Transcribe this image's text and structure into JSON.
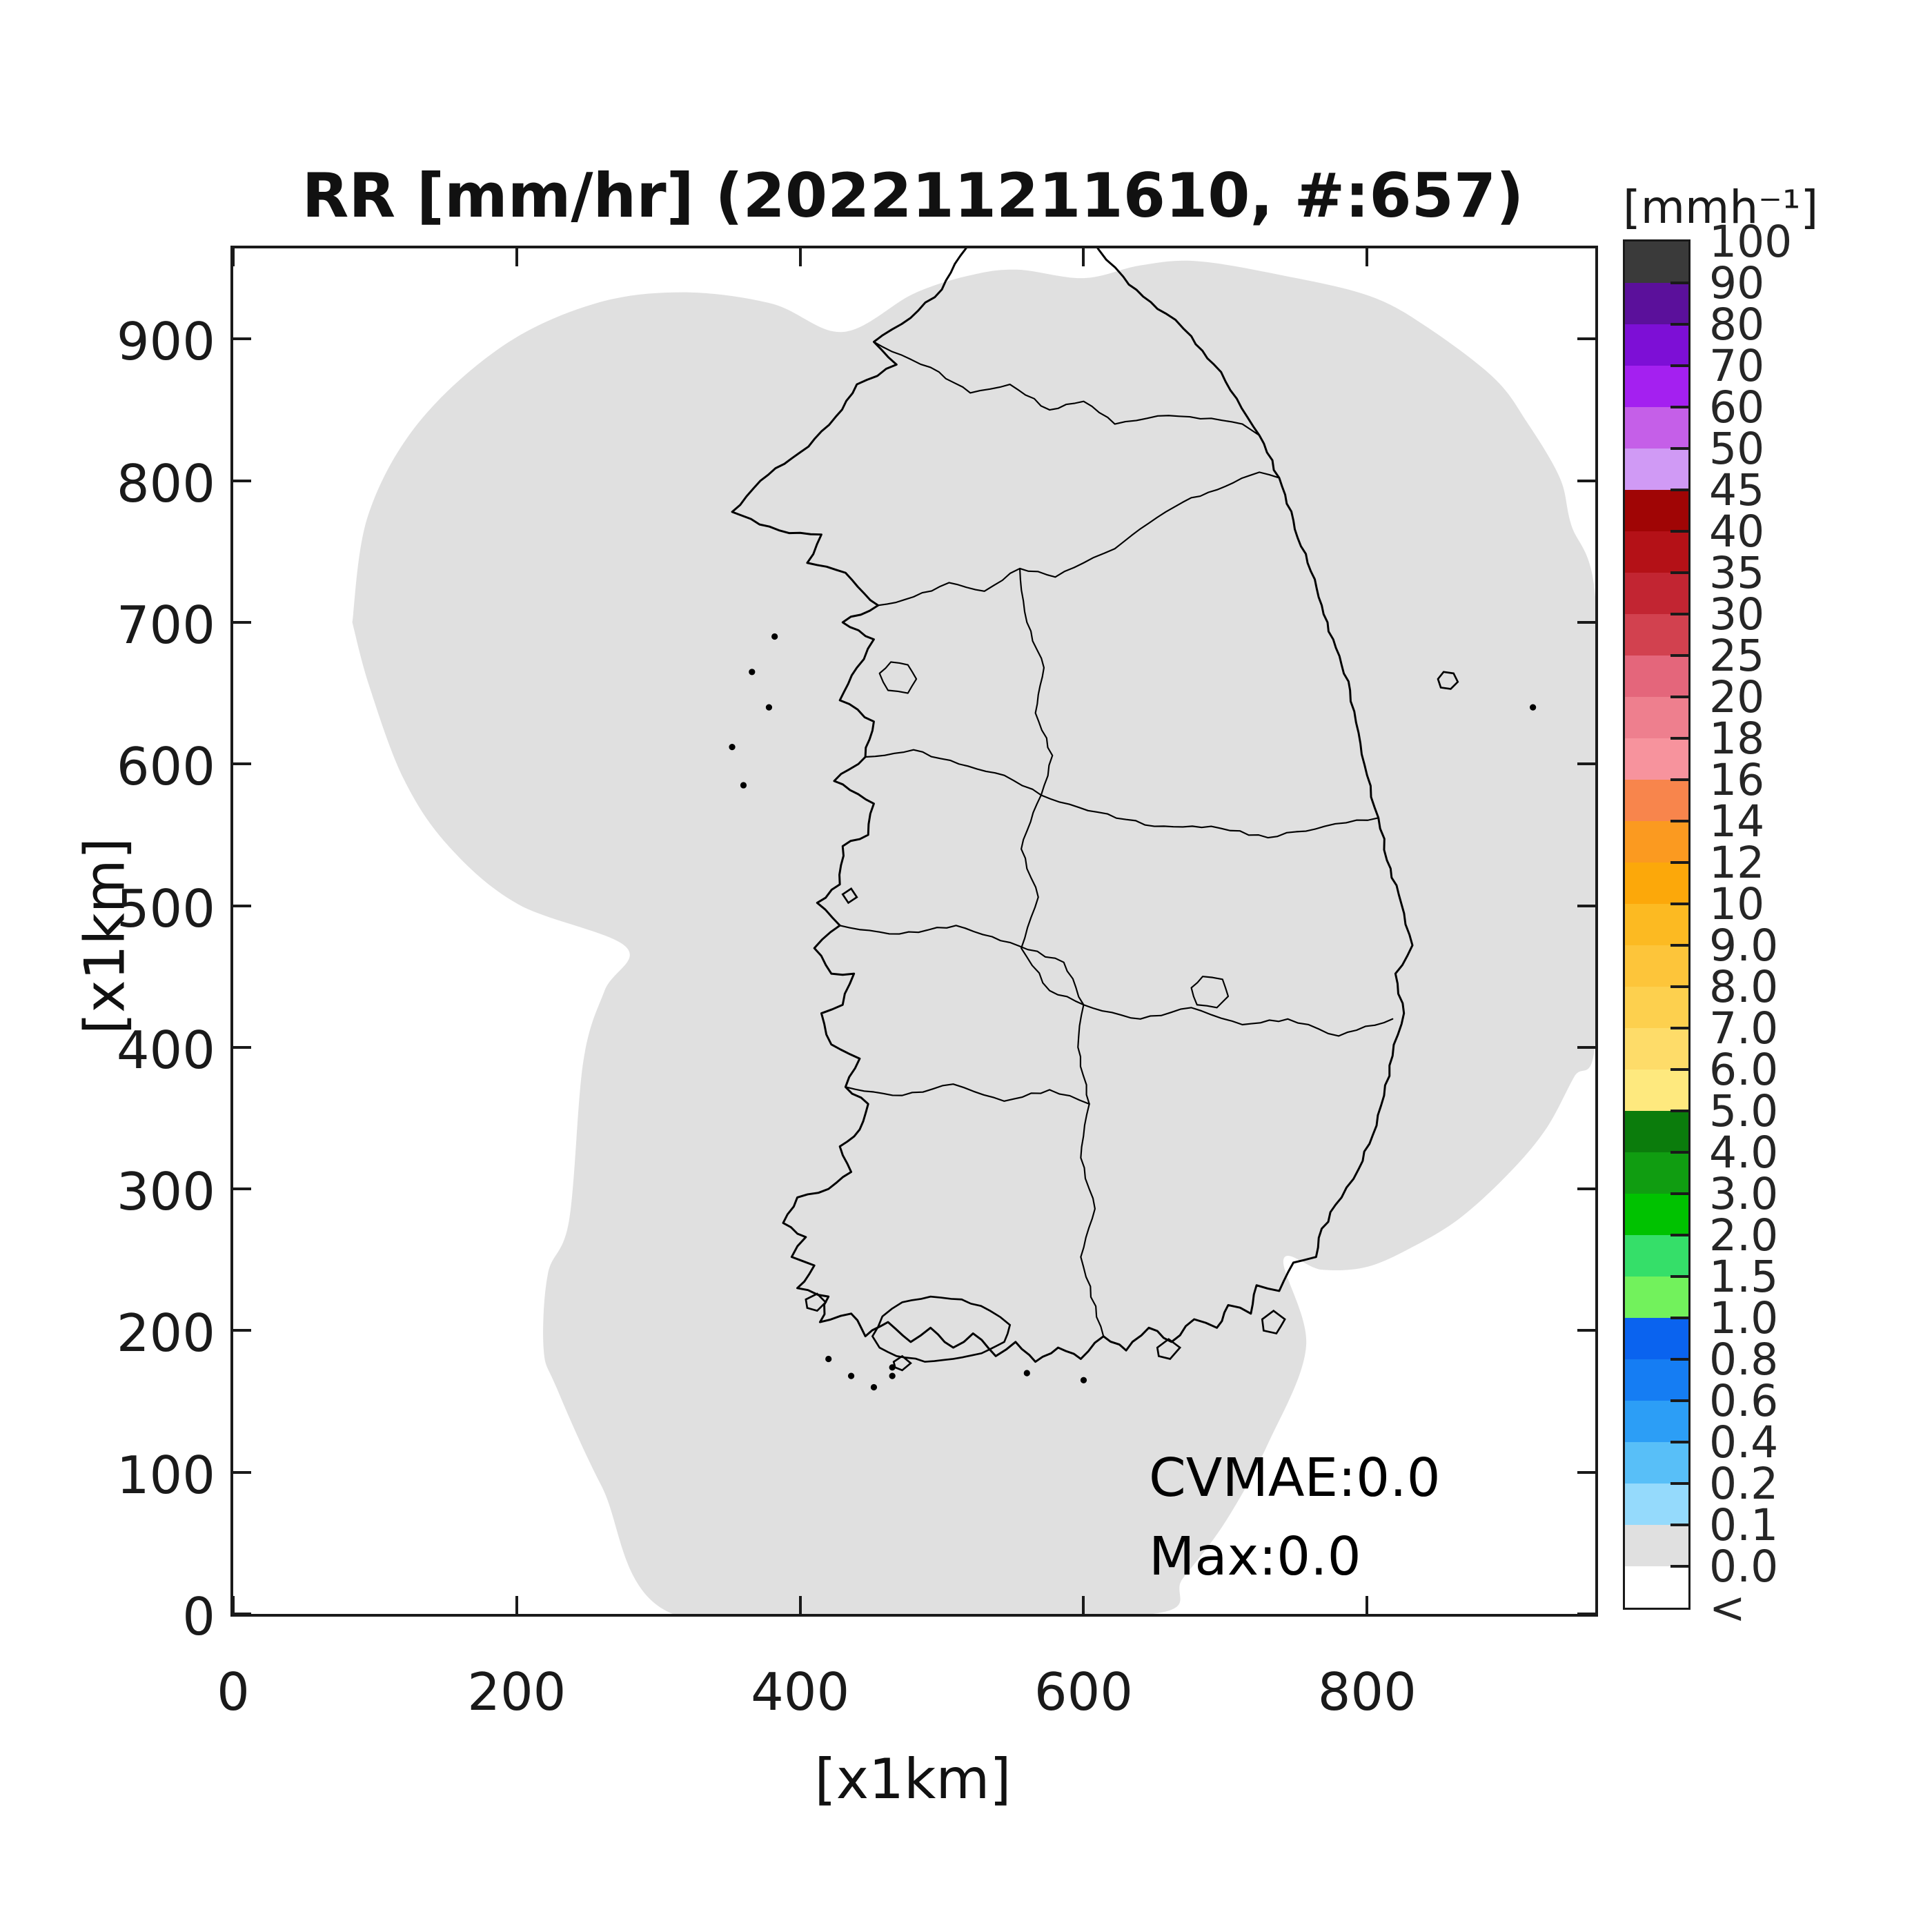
{
  "title": "RR [mm/hr] (202211211610, #:657)",
  "axes": {
    "xlabel": "[x1km]",
    "ylabel": "[x1km]",
    "x_ticks": [
      0,
      200,
      400,
      600,
      800
    ],
    "y_ticks": [
      0,
      100,
      200,
      300,
      400,
      500,
      600,
      700,
      800,
      900
    ],
    "x_range": [
      0,
      961
    ],
    "y_range": [
      0,
      964
    ]
  },
  "annotations": {
    "cvmae": "CVMAE:0.0",
    "max": "Max:0.0"
  },
  "colorbar": {
    "unit": "[mmh⁻¹]",
    "tick_labels": [
      "100",
      "90",
      "80",
      "70",
      "60",
      "50",
      "45",
      "40",
      "35",
      "30",
      "25",
      "20",
      "18",
      "16",
      "14",
      "12",
      "10",
      "9.0",
      "8.0",
      "7.0",
      "6.0",
      "5.0",
      "4.0",
      "3.0",
      "2.0",
      "1.5",
      "1.0",
      "0.8",
      "0.6",
      "0.4",
      "0.2",
      "0.1",
      "0.0",
      "<"
    ],
    "block_colors": [
      "#3a3a3a",
      "#5b109b",
      "#7d0fd6",
      "#a420f0",
      "#c55fe8",
      "#d09af5",
      "#a00505",
      "#b41117",
      "#c22532",
      "#d2414f",
      "#e4667b",
      "#ee7f8e",
      "#f7939d",
      "#f8854c",
      "#fb9a20",
      "#fca80a",
      "#fcba22",
      "#fdc53a",
      "#fdd04e",
      "#fedc69",
      "#fee97e",
      "#0b7c0c",
      "#109d11",
      "#00c200",
      "#35df69",
      "#72f25c",
      "#0a63ef",
      "#157df3",
      "#2c9ef6",
      "#58bff8",
      "#95dafc",
      "#e0e0e0",
      "#ffffff"
    ]
  },
  "map": {
    "coverage_color": "#e0e0e0",
    "coastline_color": "#000000",
    "background_color": "#ffffff"
  },
  "chart_data": {
    "type": "heatmap",
    "title": "RR [mm/hr] (202211211610, #:657)",
    "field": "RR",
    "units": "mm/hr",
    "timestamp": "202211211610",
    "sample_count": 657,
    "xlabel": "[x1km]",
    "ylabel": "[x1km]",
    "xlim": [
      0,
      961
    ],
    "ylim": [
      0,
      964
    ],
    "x_ticks": [
      0,
      200,
      400,
      600,
      800
    ],
    "y_ticks": [
      0,
      100,
      200,
      300,
      400,
      500,
      600,
      700,
      800,
      900
    ],
    "cvmae": 0.0,
    "max_value": 0.0,
    "legend_position": "right",
    "grid": false,
    "colorbar_levels": [
      0.0,
      0.1,
      0.2,
      0.4,
      0.6,
      0.8,
      1.0,
      1.5,
      2.0,
      3.0,
      4.0,
      5.0,
      6.0,
      7.0,
      8.0,
      9.0,
      10,
      12,
      14,
      16,
      18,
      20,
      25,
      30,
      35,
      40,
      45,
      50,
      60,
      70,
      80,
      90,
      100
    ],
    "values_summary": "Rain-rate field is uniformly 0.0 mm/hr over the whole radar composite; the radar coverage union over the Korean peninsula is shaded with the 0.0-level gray, white outside coverage."
  }
}
